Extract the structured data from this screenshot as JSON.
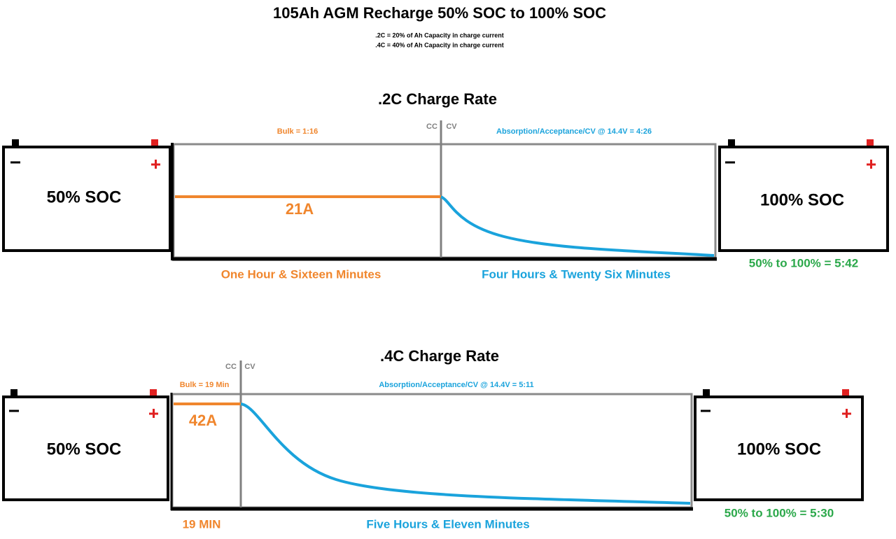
{
  "title": "105Ah AGM Recharge 50% SOC to 100% SOC",
  "notes": [
    ".2C = 20% of Ah Capacity in charge current",
    ".4C = 40% of Ah Capacity in charge current"
  ],
  "panels": [
    {
      "title": ".2C Charge Rate",
      "cc_label": "CC",
      "cv_label": "CV",
      "bulk_label": "Bulk = 1:16",
      "absorption_label": "Absorption/Acceptance/CV @ 14.4V = 4:26",
      "current": "21A",
      "bulk_duration": "One Hour & Sixteen Minutes",
      "absorption_duration": "Four Hours & Twenty Six Minutes",
      "start_soc": "50% SOC",
      "end_soc": "100% SOC",
      "total": "50% to 100% = 5:42"
    },
    {
      "title": ".4C Charge Rate",
      "cc_label": "CC",
      "cv_label": "CV",
      "bulk_label": "Bulk = 19 Min",
      "absorption_label": "Absorption/Acceptance/CV @ 14.4V = 5:11",
      "current": "42A",
      "bulk_duration": "19 MIN",
      "absorption_duration": "Five Hours & Eleven Minutes",
      "start_soc": "50% SOC",
      "end_soc": "100% SOC",
      "total": "50% to 100% = 5:30"
    }
  ]
}
